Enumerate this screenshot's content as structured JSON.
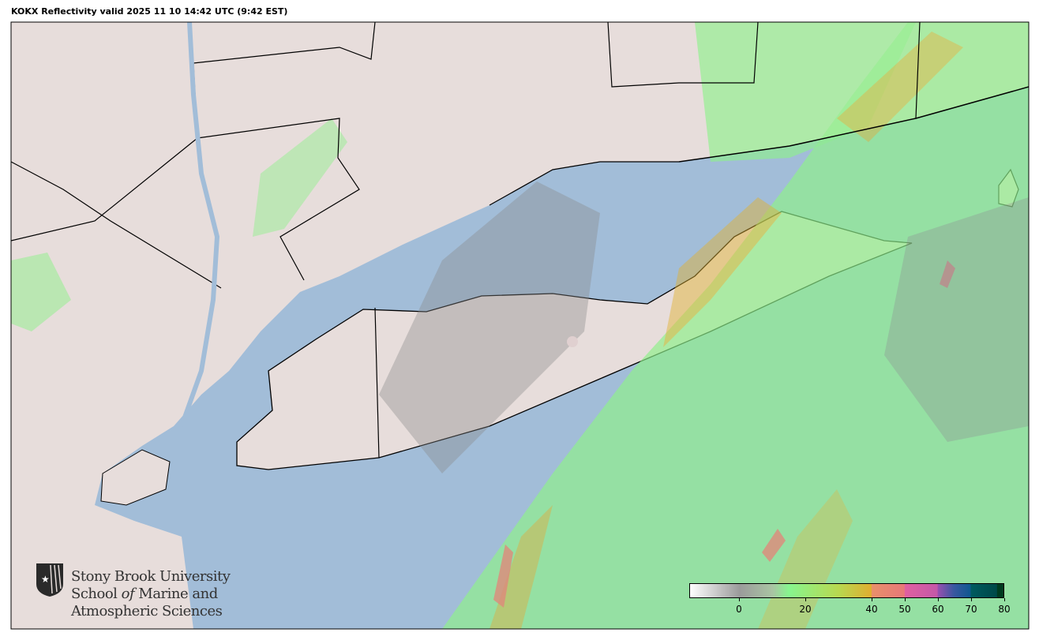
{
  "title": "KOKX Reflectivity valid 2025 11 10 14:42 UTC (9:42 EST)",
  "colors": {
    "water": "#a2bdd8",
    "land": "#e7dddb",
    "radar_low": "#9a9a9a",
    "radar_mid": "#8ef08a",
    "radar_high": "#e0b030",
    "radar_heavy": "#e8806a"
  },
  "logo": {
    "line1": "Stony Brook University",
    "line2_a": "School ",
    "line2_b": "of",
    "line2_c": " Marine and",
    "line3": "Atmospheric Sciences",
    "icon": "star-shield-icon"
  },
  "colorbar": {
    "range": [
      -15,
      80
    ],
    "ticks": [
      {
        "value": 0,
        "label": "0"
      },
      {
        "value": 20,
        "label": "20"
      },
      {
        "value": 40,
        "label": "40"
      },
      {
        "value": 50,
        "label": "50"
      },
      {
        "value": 60,
        "label": "60"
      },
      {
        "value": 70,
        "label": "70"
      },
      {
        "value": 80,
        "label": "80"
      }
    ],
    "stops": [
      {
        "value": -15,
        "color": "#ffffff"
      },
      {
        "value": 0,
        "color": "#9b9b9b"
      },
      {
        "value": 10,
        "color": "#a9c4a3"
      },
      {
        "value": 15,
        "color": "#87f58e"
      },
      {
        "value": 30,
        "color": "#b8d850"
      },
      {
        "value": 40,
        "color": "#e0ae30"
      },
      {
        "value": 40.1,
        "color": "#e8906a"
      },
      {
        "value": 50,
        "color": "#e87878"
      },
      {
        "value": 50.1,
        "color": "#e060a0"
      },
      {
        "value": 60,
        "color": "#c458a8"
      },
      {
        "value": 60.1,
        "color": "#9850b0"
      },
      {
        "value": 65,
        "color": "#3858a0"
      },
      {
        "value": 70,
        "color": "#105890"
      },
      {
        "value": 70.1,
        "color": "#005a60"
      },
      {
        "value": 78,
        "color": "#004848"
      },
      {
        "value": 78.1,
        "color": "#003a20"
      },
      {
        "value": 80,
        "color": "#003a20"
      }
    ]
  }
}
